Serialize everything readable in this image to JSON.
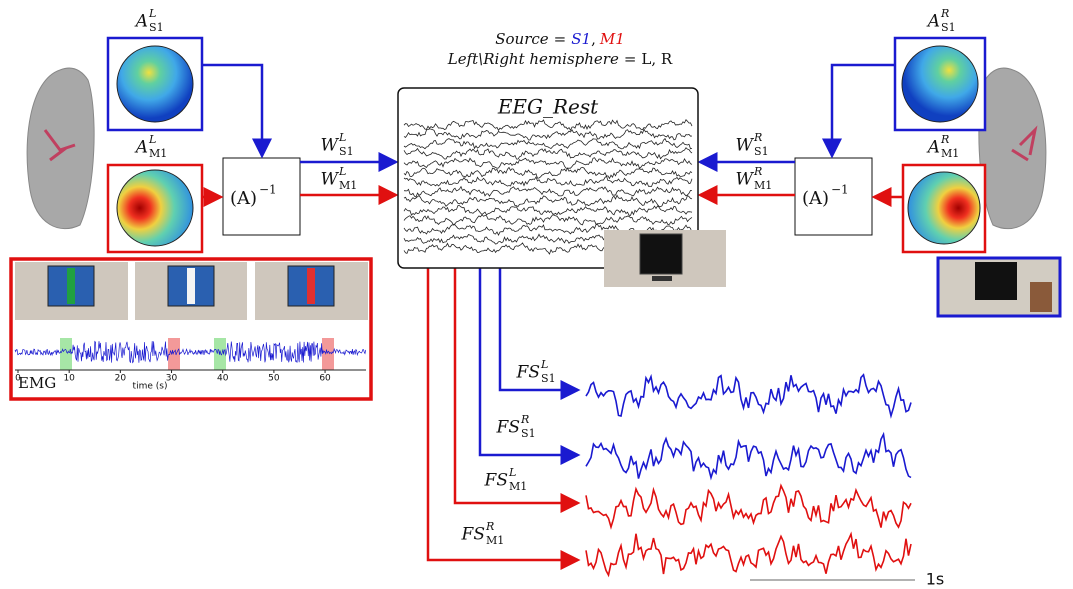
{
  "header": {
    "source": {
      "label": "Source",
      "eq": "=",
      "first": "S1",
      "comma": ",",
      "second": "M1"
    },
    "hemisphere": {
      "label": "Left\\Right hemisphere",
      "eq": "=",
      "value": "L, R"
    }
  },
  "eeg": {
    "title": "EEG_Rest"
  },
  "left": {
    "a_s1": {
      "base": "A",
      "sup": "L",
      "sub": "S1"
    },
    "a_m1": {
      "base": "A",
      "sup": "L",
      "sub": "M1"
    },
    "w_s1": {
      "base": "W",
      "sup": "L",
      "sub": "S1"
    },
    "w_m1": {
      "base": "W",
      "sup": "L",
      "sub": "M1"
    },
    "inverse": {
      "base": "(A)",
      "sup": "−1"
    }
  },
  "right": {
    "a_s1": {
      "base": "A",
      "sup": "R",
      "sub": "S1"
    },
    "a_m1": {
      "base": "A",
      "sup": "R",
      "sub": "M1"
    },
    "w_s1": {
      "base": "W",
      "sup": "R",
      "sub": "S1"
    },
    "w_m1": {
      "base": "W",
      "sup": "R",
      "sub": "M1"
    },
    "inverse": {
      "base": "(A)",
      "sup": "−1"
    }
  },
  "emg": {
    "label": "EMG",
    "xlabel": "time (s)",
    "xlim": [
      0,
      68
    ],
    "xticks": [
      0,
      10,
      20,
      30,
      40,
      50,
      60
    ]
  },
  "outputs": [
    {
      "base": "FS",
      "sup": "L",
      "sub": "S1"
    },
    {
      "base": "FS",
      "sup": "R",
      "sub": "S1"
    },
    {
      "base": "FS",
      "sup": "L",
      "sub": "M1"
    },
    {
      "base": "FS",
      "sup": "R",
      "sub": "M1"
    }
  ],
  "scale": {
    "label": "1s"
  }
}
